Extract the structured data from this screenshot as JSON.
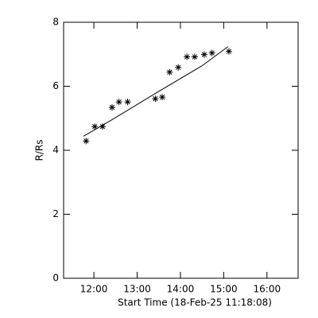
{
  "chart_data": {
    "type": "scatter",
    "xlabel": "Start Time (18-Feb-25 11:18:08)",
    "ylabel": "R/Rs",
    "x": [
      11.82,
      12.02,
      12.2,
      12.42,
      12.58,
      12.78,
      13.42,
      13.58,
      13.75,
      13.95,
      14.15,
      14.33,
      14.55,
      14.73,
      15.12
    ],
    "values": [
      4.29,
      4.74,
      4.74,
      5.34,
      5.51,
      5.51,
      5.61,
      5.66,
      6.44,
      6.59,
      6.92,
      6.92,
      6.99,
      7.04,
      7.09
    ],
    "fit": {
      "x": [
        11.76,
        12.4,
        13.5,
        14.5,
        15.1
      ],
      "values": [
        4.44,
        4.94,
        5.84,
        6.64,
        7.24
      ]
    },
    "color": "#000000",
    "xlim": [
      11.3,
      16.72
    ],
    "ylim": [
      0,
      8
    ],
    "xticks": [
      {
        "value": 12,
        "label": "12:00"
      },
      {
        "value": 13,
        "label": "13:00"
      },
      {
        "value": 14,
        "label": "14:00"
      },
      {
        "value": 15,
        "label": "15:00"
      },
      {
        "value": 16,
        "label": "16:00"
      }
    ],
    "yticks": [
      0,
      2,
      4,
      6,
      8
    ]
  }
}
